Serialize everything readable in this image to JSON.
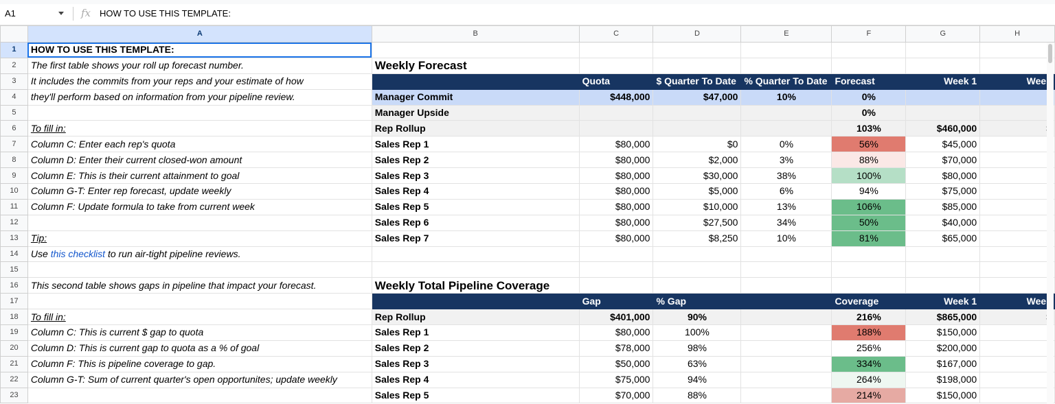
{
  "formula_bar": {
    "cell_ref": "A1",
    "fx_icon": "function-icon",
    "content": "HOW TO USE THIS TEMPLATE:"
  },
  "columns": [
    "A",
    "B",
    "C",
    "D",
    "E",
    "F",
    "G",
    "H"
  ],
  "selected_cell": "A1",
  "colors": {
    "header_bg": "#173561",
    "commit_bg": "#c9daf8",
    "rollup_bg": "#f1f1f1",
    "link": "#1155cc"
  },
  "rows": [
    {
      "n": "1",
      "type": "plain",
      "A": "HOW TO USE THIS TEMPLATE:",
      "A_style": "bold"
    },
    {
      "n": "2",
      "type": "title",
      "A": "The first table shows your roll up forecast number.",
      "A_style": "ital",
      "B": "Weekly Forecast"
    },
    {
      "n": "3",
      "type": "header",
      "A": "It includes the commits from your reps and your estimate of how",
      "A_style": "ital",
      "C": "Quota",
      "D": "$ Quarter To Date",
      "E": "% Quarter To Date",
      "F": "Forecast",
      "G": "Week 1",
      "H": "Week"
    },
    {
      "n": "4",
      "type": "commit",
      "A": "they'll perform based on information from your pipeline review.",
      "A_style": "ital",
      "B": "Manager Commit",
      "C": "$448,000",
      "D": "$47,000",
      "E": "10%",
      "F": "0%"
    },
    {
      "n": "5",
      "type": "gray",
      "B": "Manager Upside",
      "F": "0%"
    },
    {
      "n": "6",
      "type": "gray",
      "A": "To fill in:",
      "A_style": "ital und",
      "B": "Rep Rollup",
      "F": "103%",
      "G": "$460,000",
      "H": "$"
    },
    {
      "n": "7",
      "type": "rep",
      "A": "Column C: Enter each rep's quota",
      "A_style": "ital",
      "B": "Sales Rep 1",
      "C": "$80,000",
      "D": "$0",
      "E": "0%",
      "F": "56%",
      "F_fill": "#e07b6f",
      "G": "$45,000"
    },
    {
      "n": "8",
      "type": "rep",
      "A": "Column D: Enter their current closed-won amount",
      "A_style": "ital",
      "B": "Sales Rep 2",
      "C": "$80,000",
      "D": "$2,000",
      "E": "3%",
      "F": "88%",
      "F_fill": "#fbe8e6",
      "G": "$70,000"
    },
    {
      "n": "9",
      "type": "rep",
      "A": "Column E: This is their current attainment to goal",
      "A_style": "ital",
      "B": "Sales Rep 3",
      "C": "$80,000",
      "D": "$30,000",
      "E": "38%",
      "F": "100%",
      "F_fill": "#b5dfc6",
      "G": "$80,000"
    },
    {
      "n": "10",
      "type": "rep",
      "A": "Column G-T: Enter rep forecast, update weekly",
      "A_style": "ital",
      "B": "Sales Rep 4",
      "C": "$80,000",
      "D": "$5,000",
      "E": "6%",
      "F": "94%",
      "G": "$75,000"
    },
    {
      "n": "11",
      "type": "rep",
      "A": "Column F: Update formula to take from current week",
      "A_style": "ital",
      "B": "Sales Rep 5",
      "C": "$80,000",
      "D": "$10,000",
      "E": "13%",
      "F": "106%",
      "F_fill": "#6bbd8a",
      "G": "$85,000"
    },
    {
      "n": "12",
      "type": "rep",
      "B": "Sales Rep 6",
      "C": "$80,000",
      "D": "$27,500",
      "E": "34%",
      "F": "50%",
      "F_fill": "#6bbd8a",
      "G": "$40,000"
    },
    {
      "n": "13",
      "type": "rep",
      "A": "Tip:",
      "A_style": "ital und",
      "B": "Sales Rep 7",
      "C": "$80,000",
      "D": "$8,250",
      "E": "10%",
      "F": "81%",
      "F_fill": "#6bbd8a",
      "G": "$65,000"
    },
    {
      "n": "14",
      "type": "link",
      "A_pre": "Use ",
      "A_link": "this checklist",
      "A_post": " to run air-tight pipeline reviews.",
      "A_style": "ital"
    },
    {
      "n": "15",
      "type": "plain"
    },
    {
      "n": "16",
      "type": "title",
      "A": "This second table shows gaps in pipeline that impact your forecast.",
      "A_style": "ital",
      "B": "Weekly Total Pipeline Coverage"
    },
    {
      "n": "17",
      "type": "header",
      "C": "Gap",
      "D": "% Gap",
      "F": "Coverage",
      "G": "Week 1",
      "H": "Week"
    },
    {
      "n": "18",
      "type": "gray2",
      "A": "To fill in:",
      "A_style": "ital und",
      "B": "Rep Rollup",
      "C": "$401,000",
      "D": "90%",
      "F": "216%",
      "G": "$865,000",
      "H": "$"
    },
    {
      "n": "19",
      "type": "rep2",
      "A": "Column C: This is current $ gap to quota",
      "A_style": "ital",
      "B": "Sales Rep 1",
      "C": "$80,000",
      "D": "100%",
      "F": "188%",
      "F_fill": "#e07b6f",
      "G": "$150,000"
    },
    {
      "n": "20",
      "type": "rep2",
      "A": "Column D: This is current gap to quota as a % of goal",
      "A_style": "ital",
      "B": "Sales Rep 2",
      "C": "$78,000",
      "D": "98%",
      "F": "256%",
      "G": "$200,000"
    },
    {
      "n": "21",
      "type": "rep2",
      "A": "Column F: This is pipeline coverage to gap.",
      "A_style": "ital",
      "B": "Sales Rep 3",
      "C": "$50,000",
      "D": "63%",
      "F": "334%",
      "F_fill": "#6bbd8a",
      "G": "$167,000"
    },
    {
      "n": "22",
      "type": "rep2",
      "A": "Column G-T: Sum of current quarter's open opportunites; update weekly",
      "A_style": "ital",
      "B": "Sales Rep 4",
      "C": "$75,000",
      "D": "94%",
      "F": "264%",
      "F_fill": "#eef7f1",
      "G": "$198,000"
    },
    {
      "n": "23",
      "type": "rep2",
      "B": "Sales Rep 5",
      "C": "$70,000",
      "D": "88%",
      "F": "214%",
      "F_fill": "#e6aaa3",
      "G": "$150,000"
    }
  ]
}
